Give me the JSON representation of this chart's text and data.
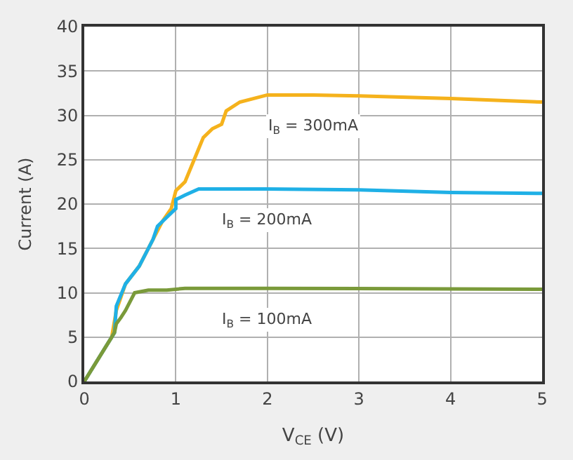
{
  "chart_data": {
    "type": "line",
    "xlabel": "V$_{CE}$ (V)",
    "ylabel": "Current (A)",
    "xlim": [
      0,
      5
    ],
    "ylim": [
      0,
      40
    ],
    "xticks": [
      0,
      1,
      2,
      3,
      4,
      5
    ],
    "yticks": [
      0,
      5,
      10,
      15,
      20,
      25,
      30,
      35,
      40
    ],
    "grid": true,
    "legend": false,
    "marker": "none",
    "line_style": "solid",
    "series": [
      {
        "name": "I$_{B}$ = 300mA",
        "color": "#f5b21c",
        "x": [
          0,
          0.3,
          0.35,
          0.45,
          0.6,
          0.75,
          0.85,
          0.95,
          1.0,
          1.1,
          1.2,
          1.3,
          1.4,
          1.5,
          1.55,
          1.7,
          2.0,
          2.5,
          3,
          4,
          5
        ],
        "values": [
          0,
          5,
          8,
          11,
          13,
          16,
          18,
          19.5,
          21.5,
          22.5,
          25,
          27.5,
          28.5,
          29,
          30.5,
          31.5,
          32.3,
          32.3,
          32.2,
          31.9,
          31.5
        ]
      },
      {
        "name": "I$_{B}$ = 200mA",
        "color": "#1fb0e6",
        "x": [
          0,
          0.33,
          0.35,
          0.45,
          0.6,
          0.75,
          0.8,
          0.9,
          1.0,
          1.0,
          1.1,
          1.25,
          2,
          3,
          4,
          5
        ],
        "values": [
          0,
          5.5,
          8.5,
          11,
          13,
          16,
          17.5,
          18.5,
          19.5,
          20.5,
          21,
          21.7,
          21.7,
          21.6,
          21.3,
          21.2
        ]
      },
      {
        "name": "I$_{B}$ = 100mA",
        "color": "#7a9a3a",
        "x": [
          0,
          0.33,
          0.35,
          0.4,
          0.45,
          0.55,
          0.7,
          0.9,
          1.1,
          2,
          5
        ],
        "values": [
          0,
          5.5,
          6.5,
          7.2,
          8,
          10,
          10.3,
          10.3,
          10.5,
          10.5,
          10.4
        ]
      }
    ]
  }
}
